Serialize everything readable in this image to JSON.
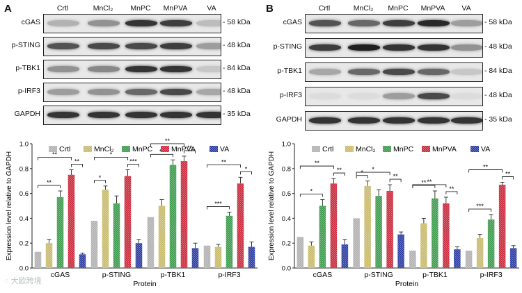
{
  "panels": [
    {
      "letter": "A",
      "lanes": [
        "Crtl",
        "MnCl₂",
        "MnPC",
        "MnPVA",
        "VA"
      ],
      "blots": [
        {
          "protein": "cGAS",
          "kda": "58 kDa"
        },
        {
          "protein": "p-STING",
          "kda": "48 kDa"
        },
        {
          "protein": "p-TBK1",
          "kda": "84 kDa"
        },
        {
          "protein": "p-IRF3",
          "kda": "48 kDa"
        },
        {
          "protein": "GAPDH",
          "kda": "35 kDa"
        }
      ],
      "band_intensity": [
        [
          0.25,
          0.4,
          0.85,
          0.8,
          0.2
        ],
        [
          0.7,
          0.75,
          0.75,
          0.8,
          0.35
        ],
        [
          0.4,
          0.45,
          0.85,
          0.85,
          0.15
        ],
        [
          0.35,
          0.4,
          0.6,
          0.75,
          0.3
        ],
        [
          0.85,
          0.85,
          0.85,
          0.85,
          0.85
        ]
      ]
    },
    {
      "letter": "B",
      "lanes": [
        "Crtl",
        "MnCl₂",
        "MnPC",
        "MnPVA",
        "VA"
      ],
      "blots": [
        {
          "protein": "cGAS",
          "kda": "58 kDa"
        },
        {
          "protein": "p-STING",
          "kda": "48 kDa"
        },
        {
          "protein": "p-TBK1",
          "kda": "84 kDa"
        },
        {
          "protein": "p-IRF3",
          "kda": "48 kDa"
        },
        {
          "protein": "GAPDH",
          "kda": "35 kDa"
        }
      ],
      "band_intensity": [
        [
          0.7,
          0.6,
          0.8,
          0.9,
          0.35
        ],
        [
          0.8,
          0.95,
          0.85,
          0.85,
          0.4
        ],
        [
          0.3,
          0.6,
          0.75,
          0.6,
          0.15
        ],
        [
          0.05,
          0.05,
          0.35,
          0.75,
          0.05
        ],
        [
          0.85,
          0.85,
          0.85,
          0.85,
          0.85
        ]
      ]
    }
  ],
  "chart_data": [
    {
      "type": "bar",
      "title": "",
      "xlabel": "Protein",
      "ylabel": "Expression level relative to GAPDH",
      "categories": [
        "cGAS",
        "p-STING",
        "p-TBK1",
        "p-IRF3"
      ],
      "ylim": [
        0,
        1.0
      ],
      "yticks": [
        "0.0",
        "0.2",
        "0.4",
        "0.6",
        "0.8",
        "1.0"
      ],
      "legend_position": "top",
      "series": [
        {
          "name": "Crtl",
          "color": "#b0b0b0",
          "values": [
            0.13,
            0.38,
            0.41,
            0.18
          ],
          "errors": [
            0.0,
            0.0,
            0.0,
            0.0
          ]
        },
        {
          "name": "MnCl₂",
          "color": "#c8b96a",
          "values": [
            0.2,
            0.63,
            0.5,
            0.17
          ],
          "errors": [
            0.03,
            0.03,
            0.05,
            0.02
          ]
        },
        {
          "name": "MnPC",
          "color": "#3a9a4a",
          "values": [
            0.57,
            0.52,
            0.83,
            0.42
          ],
          "errors": [
            0.05,
            0.06,
            0.04,
            0.03
          ]
        },
        {
          "name": "MnPVA",
          "color": "#c8283a",
          "values": [
            0.75,
            0.74,
            0.86,
            0.68
          ],
          "errors": [
            0.04,
            0.05,
            0.04,
            0.05
          ]
        },
        {
          "name": "VA",
          "color": "#2a3aa0",
          "values": [
            0.11,
            0.2,
            0.16,
            0.17
          ],
          "errors": [
            0.01,
            0.03,
            0.04,
            0.04
          ]
        }
      ],
      "significance": [
        {
          "category": 0,
          "from": 0,
          "to": 2,
          "label": "**"
        },
        {
          "category": 0,
          "from": 0,
          "to": 3,
          "label": "**"
        },
        {
          "category": 0,
          "from": 3,
          "to": 4,
          "label": "**"
        },
        {
          "category": 1,
          "from": 0,
          "to": 1,
          "label": "*"
        },
        {
          "category": 1,
          "from": 0,
          "to": 3,
          "label": "*"
        },
        {
          "category": 1,
          "from": 3,
          "to": 4,
          "label": "***"
        },
        {
          "category": 2,
          "from": 0,
          "to": 2,
          "label": "**"
        },
        {
          "category": 2,
          "from": 0,
          "to": 3,
          "label": "**"
        },
        {
          "category": 2,
          "from": 3,
          "to": 4,
          "label": "**"
        },
        {
          "category": 3,
          "from": 0,
          "to": 2,
          "label": "***"
        },
        {
          "category": 3,
          "from": 0,
          "to": 3,
          "label": "**"
        },
        {
          "category": 3,
          "from": 3,
          "to": 4,
          "label": "*"
        }
      ]
    },
    {
      "type": "bar",
      "title": "",
      "xlabel": "Protein",
      "ylabel": "Expression level relative to GAPDH",
      "categories": [
        "cGAS",
        "p-STING",
        "p-TBK1",
        "p-IRF3"
      ],
      "ylim": [
        0,
        1.0
      ],
      "yticks": [
        "0.0",
        "0.2",
        "0.4",
        "0.6",
        "0.8",
        "1.0"
      ],
      "legend_position": "top",
      "series": [
        {
          "name": "Crtl",
          "color": "#b0b0b0",
          "values": [
            0.25,
            0.4,
            0.14,
            0.14
          ],
          "errors": [
            0.0,
            0.0,
            0.0,
            0.0
          ]
        },
        {
          "name": "MnCl₂",
          "color": "#c8b96a",
          "values": [
            0.18,
            0.66,
            0.36,
            0.24
          ],
          "errors": [
            0.03,
            0.04,
            0.04,
            0.03
          ]
        },
        {
          "name": "MnPC",
          "color": "#3a9a4a",
          "values": [
            0.5,
            0.58,
            0.56,
            0.39
          ],
          "errors": [
            0.05,
            0.05,
            0.06,
            0.04
          ]
        },
        {
          "name": "MnPVA",
          "color": "#c8283a",
          "values": [
            0.68,
            0.62,
            0.52,
            0.67
          ],
          "errors": [
            0.04,
            0.05,
            0.05,
            0.02
          ]
        },
        {
          "name": "VA",
          "color": "#2a3aa0",
          "values": [
            0.19,
            0.27,
            0.15,
            0.16
          ],
          "errors": [
            0.04,
            0.02,
            0.02,
            0.02
          ]
        }
      ],
      "significance": [
        {
          "category": 0,
          "from": 0,
          "to": 2,
          "label": "*"
        },
        {
          "category": 0,
          "from": 0,
          "to": 3,
          "label": "**"
        },
        {
          "category": 0,
          "from": 3,
          "to": 4,
          "label": "**"
        },
        {
          "category": 1,
          "from": 0,
          "to": 1,
          "label": "*"
        },
        {
          "category": 1,
          "from": 0,
          "to": 3,
          "label": "*"
        },
        {
          "category": 1,
          "from": 3,
          "to": 4,
          "label": "**"
        },
        {
          "category": 2,
          "from": 0,
          "to": 2,
          "label": "**"
        },
        {
          "category": 2,
          "from": 0,
          "to": 3,
          "label": "**"
        },
        {
          "category": 2,
          "from": 3,
          "to": 4,
          "label": "**"
        },
        {
          "category": 3,
          "from": 0,
          "to": 2,
          "label": "***"
        },
        {
          "category": 3,
          "from": 0,
          "to": 3,
          "label": "**"
        },
        {
          "category": 3,
          "from": 3,
          "to": 4,
          "label": "**"
        }
      ]
    }
  ],
  "watermark": "大欧跨境"
}
